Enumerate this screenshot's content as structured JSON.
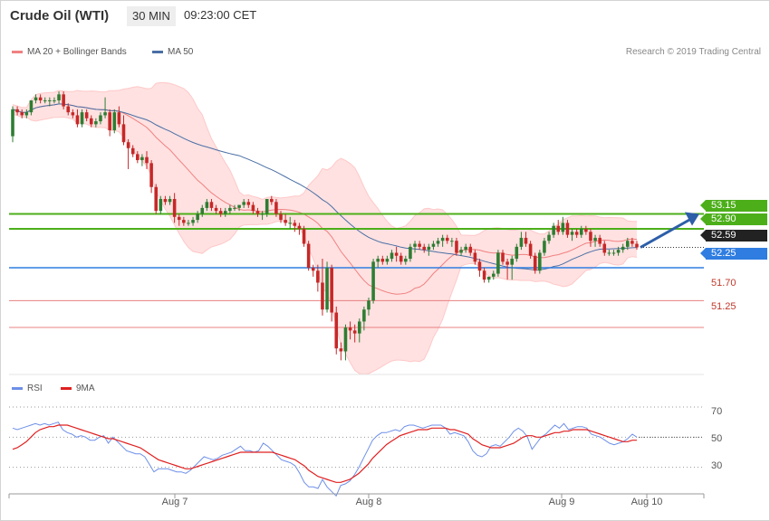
{
  "header": {
    "title": "Crude Oil (WTI)",
    "timeframe": "30 MIN",
    "time": "09:23:00 CET"
  },
  "legend": {
    "ma20": "MA 20 + Bollinger Bands",
    "ma50": "MA 50",
    "rsi": "RSI",
    "rsi_ma": "9MA"
  },
  "copyright": "Research © 2019 Trading Central",
  "colors": {
    "up": "#2e7d32",
    "down": "#c62828",
    "ma20": "#f08080",
    "band_fill": "#ffe1e1",
    "ma50": "#4a6fa5",
    "resistance": "#4caf1a",
    "pivot": "#2f7de1",
    "support": "#e88080",
    "current": "#222222",
    "rsi": "#6d8fe8",
    "rsi_ma": "#e02020",
    "arrow": "#2d5ea8"
  },
  "levels": {
    "resistance_2": "53.15",
    "resistance_1": "52.90",
    "current": "52.59",
    "pivot": "52.25",
    "support_1": "51.70",
    "support_2": "51.25"
  },
  "rsi_axis": [
    "70",
    "50",
    "30"
  ],
  "x_axis": [
    "Aug 7",
    "Aug 8",
    "Aug 9",
    "Aug 10"
  ],
  "chart_data": [
    {
      "type": "candlestick",
      "title": "Crude Oil (WTI)",
      "timeframe": "30 MIN",
      "ylim": [
        50.6,
        55.7
      ],
      "x_labels": [
        "Aug 7",
        "Aug 8",
        "Aug 9",
        "Aug 10"
      ],
      "candles": [
        [
          54.45,
          54.95,
          54.35,
          54.9
        ],
        [
          54.9,
          54.95,
          54.8,
          54.85
        ],
        [
          54.85,
          54.9,
          54.75,
          54.8
        ],
        [
          54.8,
          54.9,
          54.75,
          54.85
        ],
        [
          54.85,
          55.05,
          54.8,
          55.05
        ],
        [
          55.05,
          55.15,
          55.0,
          55.1
        ],
        [
          55.1,
          55.15,
          55.0,
          55.05
        ],
        [
          55.05,
          55.1,
          55.0,
          55.05
        ],
        [
          55.05,
          55.1,
          54.95,
          55.05
        ],
        [
          55.05,
          55.1,
          55.0,
          55.05
        ],
        [
          55.05,
          55.2,
          55.0,
          55.15
        ],
        [
          55.15,
          55.2,
          54.9,
          54.95
        ],
        [
          54.95,
          55.0,
          54.8,
          54.85
        ],
        [
          54.85,
          54.9,
          54.75,
          54.8
        ],
        [
          54.8,
          54.9,
          54.6,
          54.65
        ],
        [
          54.65,
          54.9,
          54.6,
          54.85
        ],
        [
          54.85,
          54.9,
          54.7,
          54.75
        ],
        [
          54.75,
          54.8,
          54.6,
          54.65
        ],
        [
          54.65,
          54.75,
          54.6,
          54.7
        ],
        [
          54.7,
          54.85,
          54.65,
          54.8
        ],
        [
          54.8,
          55.1,
          54.75,
          54.85
        ],
        [
          54.85,
          54.9,
          54.45,
          54.55
        ],
        [
          54.55,
          54.9,
          54.5,
          54.85
        ],
        [
          54.85,
          54.95,
          54.6,
          54.65
        ],
        [
          54.65,
          54.8,
          54.3,
          54.35
        ],
        [
          54.35,
          54.4,
          53.9,
          54.25
        ],
        [
          54.25,
          54.3,
          54.1,
          54.15
        ],
        [
          54.15,
          54.2,
          54.0,
          54.05
        ],
        [
          54.05,
          54.15,
          53.95,
          54.1
        ],
        [
          54.1,
          54.2,
          53.9,
          54.0
        ],
        [
          54.0,
          54.05,
          53.5,
          53.6
        ],
        [
          53.6,
          53.65,
          53.15,
          53.2
        ],
        [
          53.2,
          53.45,
          53.15,
          53.4
        ],
        [
          53.4,
          53.45,
          53.3,
          53.35
        ],
        [
          53.35,
          53.45,
          53.3,
          53.4
        ],
        [
          53.4,
          53.5,
          53.0,
          53.1
        ],
        [
          53.1,
          53.15,
          52.95,
          53.05
        ],
        [
          53.05,
          53.1,
          52.95,
          53.0
        ],
        [
          53.0,
          53.05,
          52.95,
          53.0
        ],
        [
          53.0,
          53.1,
          52.95,
          53.05
        ],
        [
          53.05,
          53.2,
          53.0,
          53.15
        ],
        [
          53.15,
          53.3,
          53.1,
          53.25
        ],
        [
          53.25,
          53.4,
          53.2,
          53.35
        ],
        [
          53.35,
          53.4,
          53.2,
          53.25
        ],
        [
          53.25,
          53.3,
          53.15,
          53.2
        ],
        [
          53.2,
          53.25,
          53.1,
          53.15
        ],
        [
          53.15,
          53.25,
          53.1,
          53.2
        ],
        [
          53.2,
          53.3,
          53.15,
          53.25
        ],
        [
          53.25,
          53.3,
          53.2,
          53.25
        ],
        [
          53.25,
          53.3,
          53.2,
          53.3
        ],
        [
          53.3,
          53.4,
          53.25,
          53.35
        ],
        [
          53.35,
          53.4,
          53.25,
          53.3
        ],
        [
          53.3,
          53.35,
          53.15,
          53.2
        ],
        [
          53.2,
          53.25,
          53.1,
          53.15
        ],
        [
          53.15,
          53.2,
          53.05,
          53.15
        ],
        [
          53.15,
          53.4,
          53.1,
          53.4
        ],
        [
          53.4,
          53.45,
          53.3,
          53.35
        ],
        [
          53.35,
          53.4,
          53.1,
          53.15
        ],
        [
          53.15,
          53.2,
          53.0,
          53.05
        ],
        [
          53.05,
          53.15,
          52.95,
          53.0
        ],
        [
          53.0,
          53.1,
          52.9,
          53.0
        ],
        [
          53.0,
          53.05,
          52.85,
          52.95
        ],
        [
          52.95,
          53.0,
          52.8,
          52.9
        ],
        [
          52.9,
          52.95,
          52.6,
          52.65
        ],
        [
          52.65,
          52.7,
          52.2,
          52.25
        ],
        [
          52.25,
          52.3,
          52.1,
          52.2
        ],
        [
          52.2,
          52.3,
          51.85,
          52.0
        ],
        [
          52.0,
          52.4,
          51.45,
          51.55
        ],
        [
          51.55,
          52.35,
          51.5,
          52.25
        ],
        [
          52.25,
          52.3,
          51.35,
          51.5
        ],
        [
          51.5,
          51.6,
          50.8,
          50.9
        ],
        [
          50.9,
          51.0,
          50.7,
          50.85
        ],
        [
          50.85,
          51.3,
          50.7,
          51.25
        ],
        [
          51.25,
          51.35,
          51.05,
          51.2
        ],
        [
          51.2,
          51.3,
          51.0,
          51.15
        ],
        [
          51.15,
          51.4,
          51.0,
          51.35
        ],
        [
          51.35,
          51.6,
          51.2,
          51.55
        ],
        [
          51.55,
          51.75,
          51.45,
          51.7
        ],
        [
          51.7,
          52.4,
          51.65,
          52.35
        ],
        [
          52.35,
          52.45,
          52.25,
          52.4
        ],
        [
          52.4,
          52.45,
          52.3,
          52.35
        ],
        [
          52.35,
          52.45,
          52.3,
          52.4
        ],
        [
          52.4,
          52.55,
          52.35,
          52.5
        ],
        [
          52.5,
          52.6,
          52.35,
          52.45
        ],
        [
          52.45,
          52.5,
          52.3,
          52.35
        ],
        [
          52.35,
          52.45,
          52.3,
          52.4
        ],
        [
          52.4,
          52.65,
          52.35,
          52.6
        ],
        [
          52.6,
          52.7,
          52.5,
          52.65
        ],
        [
          52.65,
          52.7,
          52.55,
          52.6
        ],
        [
          52.6,
          52.65,
          52.5,
          52.55
        ],
        [
          52.55,
          52.65,
          52.45,
          52.6
        ],
        [
          52.6,
          52.7,
          52.55,
          52.65
        ],
        [
          52.65,
          52.75,
          52.6,
          52.7
        ],
        [
          52.7,
          52.8,
          52.6,
          52.75
        ],
        [
          52.75,
          52.8,
          52.65,
          52.7
        ],
        [
          52.7,
          52.75,
          52.6,
          52.7
        ],
        [
          52.7,
          52.75,
          52.45,
          52.5
        ],
        [
          52.5,
          52.6,
          52.45,
          52.55
        ],
        [
          52.55,
          52.65,
          52.5,
          52.6
        ],
        [
          52.6,
          52.65,
          52.45,
          52.5
        ],
        [
          52.5,
          52.55,
          52.3,
          52.35
        ],
        [
          52.35,
          52.4,
          52.1,
          52.2
        ],
        [
          52.2,
          52.25,
          52.0,
          52.05
        ],
        [
          52.05,
          52.1,
          52.0,
          52.1
        ],
        [
          52.1,
          52.2,
          52.05,
          52.15
        ],
        [
          52.15,
          52.55,
          52.1,
          52.5
        ],
        [
          52.5,
          52.55,
          52.3,
          52.35
        ],
        [
          52.35,
          52.4,
          52.05,
          52.3
        ],
        [
          52.3,
          52.45,
          52.05,
          52.4
        ],
        [
          52.4,
          52.65,
          52.35,
          52.6
        ],
        [
          52.6,
          52.85,
          52.55,
          52.75
        ],
        [
          52.75,
          52.85,
          52.6,
          52.65
        ],
        [
          52.65,
          52.7,
          52.4,
          52.45
        ],
        [
          52.45,
          52.5,
          52.15,
          52.2
        ],
        [
          52.2,
          52.55,
          52.15,
          52.5
        ],
        [
          52.5,
          52.75,
          52.45,
          52.7
        ],
        [
          52.7,
          52.85,
          52.65,
          52.8
        ],
        [
          52.8,
          53.0,
          52.75,
          52.95
        ],
        [
          52.95,
          53.05,
          52.8,
          52.85
        ],
        [
          52.85,
          53.1,
          52.8,
          53.0
        ],
        [
          53.0,
          53.05,
          52.75,
          52.8
        ],
        [
          52.8,
          52.9,
          52.7,
          52.85
        ],
        [
          52.85,
          52.9,
          52.75,
          52.8
        ],
        [
          52.8,
          52.95,
          52.75,
          52.9
        ],
        [
          52.9,
          52.95,
          52.8,
          52.85
        ],
        [
          52.85,
          52.9,
          52.6,
          52.7
        ],
        [
          52.7,
          52.8,
          52.6,
          52.75
        ],
        [
          52.75,
          52.8,
          52.6,
          52.65
        ],
        [
          52.65,
          52.7,
          52.45,
          52.5
        ],
        [
          52.5,
          52.55,
          52.45,
          52.5
        ],
        [
          52.5,
          52.55,
          52.45,
          52.5
        ],
        [
          52.5,
          52.6,
          52.45,
          52.55
        ],
        [
          52.55,
          52.65,
          52.5,
          52.6
        ],
        [
          52.6,
          52.75,
          52.55,
          52.7
        ],
        [
          52.7,
          52.75,
          52.6,
          52.65
        ],
        [
          52.65,
          52.7,
          52.55,
          52.59
        ]
      ],
      "bollinger_period": 20,
      "ma_periods": [
        20,
        50
      ],
      "levels": [
        53.15,
        52.9,
        52.25,
        51.7,
        51.25
      ],
      "current_price": 52.59
    },
    {
      "type": "line",
      "ylim": [
        16,
        76
      ],
      "y_ticks": [
        70,
        50,
        30
      ],
      "series": [
        {
          "name": "RSI",
          "values": [
            56,
            55,
            56,
            57,
            58,
            59,
            58,
            59,
            58,
            59,
            60,
            55,
            53,
            52,
            50,
            51,
            50,
            48,
            48,
            50,
            51,
            46,
            50,
            47,
            44,
            41,
            40,
            39,
            39,
            37,
            32,
            27,
            29,
            29,
            29,
            28,
            27,
            27,
            26,
            28,
            31,
            34,
            37,
            36,
            35,
            36,
            38,
            39,
            40,
            42,
            44,
            41,
            41,
            40,
            41,
            46,
            44,
            41,
            38,
            35,
            34,
            33,
            31,
            26,
            20,
            17,
            17,
            16,
            22,
            17,
            14,
            11,
            18,
            19,
            21,
            25,
            30,
            36,
            42,
            48,
            51,
            53,
            53,
            54,
            55,
            54,
            57,
            58,
            58,
            57,
            56,
            57,
            58,
            58,
            58,
            56,
            52,
            53,
            52,
            51,
            47,
            41,
            38,
            37,
            39,
            44,
            45,
            44,
            47,
            50,
            54,
            56,
            54,
            50,
            42,
            46,
            50,
            52,
            55,
            58,
            56,
            59,
            55,
            56,
            57,
            57,
            56,
            52,
            51,
            50,
            48,
            46,
            45,
            46,
            47,
            49,
            52,
            50
          ]
        },
        {
          "name": "9MA",
          "values": [
            42,
            43,
            45,
            47,
            50,
            53,
            55,
            56,
            57,
            57,
            58,
            58,
            58,
            57,
            56,
            55,
            54,
            53,
            52,
            51,
            50,
            49,
            49,
            48,
            47,
            46,
            45,
            44,
            43,
            41,
            39,
            37,
            35,
            34,
            33,
            32,
            31,
            30,
            29,
            29,
            30,
            31,
            32,
            33,
            34,
            35,
            36,
            37,
            38,
            39,
            40,
            40,
            40,
            40,
            40,
            40,
            40,
            40,
            39,
            38,
            37,
            36,
            35,
            33,
            31,
            28,
            26,
            24,
            23,
            22,
            21,
            20,
            20,
            21,
            22,
            24,
            26,
            29,
            32,
            36,
            39,
            42,
            45,
            47,
            49,
            51,
            52,
            53,
            54,
            55,
            55,
            55,
            56,
            56,
            56,
            56,
            55,
            55,
            54,
            53,
            52,
            49,
            47,
            45,
            44,
            43,
            43,
            43,
            44,
            45,
            46,
            48,
            50,
            51,
            51,
            50,
            50,
            51,
            52,
            53,
            53,
            54,
            54,
            55,
            55,
            55,
            55,
            54,
            53,
            52,
            51,
            50,
            49,
            48,
            47,
            47,
            48,
            48
          ]
        }
      ]
    }
  ]
}
